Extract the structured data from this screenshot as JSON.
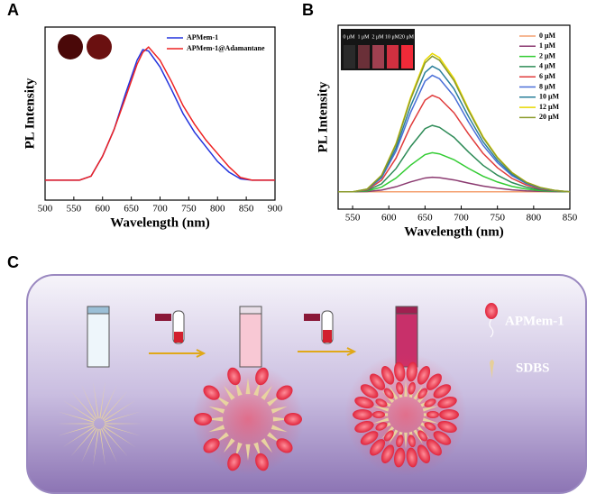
{
  "panel_labels": [
    "A",
    "B",
    "C"
  ],
  "chart_data": [
    {
      "type": "line",
      "xlabel": "Wavelength (nm)",
      "ylabel": "PL Intensity",
      "x": [
        500,
        520,
        540,
        560,
        580,
        600,
        620,
        640,
        660,
        670,
        680,
        700,
        720,
        740,
        760,
        780,
        800,
        820,
        840,
        860,
        880,
        900
      ],
      "xlim": [
        500,
        900
      ],
      "xticks": [
        500,
        550,
        600,
        650,
        700,
        750,
        800,
        850,
        900
      ],
      "ylim": [
        -0.15,
        1.15
      ],
      "legend": "upper right",
      "series": [
        {
          "name": "APMem-1",
          "color": "#2233dd",
          "values": [
            0,
            0,
            0,
            0,
            0.03,
            0.18,
            0.38,
            0.65,
            0.9,
            0.98,
            0.97,
            0.85,
            0.68,
            0.5,
            0.36,
            0.25,
            0.14,
            0.06,
            0.01,
            0,
            0,
            0
          ]
        },
        {
          "name": "APMem-1@Adamantane",
          "color": "#ee2222",
          "values": [
            0,
            0,
            0,
            0,
            0.03,
            0.18,
            0.38,
            0.62,
            0.87,
            0.96,
            1.0,
            0.9,
            0.74,
            0.56,
            0.42,
            0.3,
            0.2,
            0.1,
            0.02,
            0,
            0,
            0
          ]
        }
      ]
    },
    {
      "type": "line",
      "xlabel": "Wavelength (nm)",
      "ylabel": "PL Intensity",
      "x": [
        530,
        550,
        570,
        590,
        610,
        630,
        650,
        660,
        670,
        690,
        710,
        730,
        750,
        770,
        790,
        810,
        830,
        850
      ],
      "xlim": [
        530,
        850
      ],
      "xticks": [
        550,
        600,
        650,
        700,
        750,
        800,
        850
      ],
      "ylim": [
        -19,
        183
      ],
      "legend": "upper right",
      "inset_labels": [
        "0 μM",
        "1 μM",
        "2 μM",
        "10 μM",
        "20 μM"
      ],
      "series": [
        {
          "name": "0 μM",
          "color": "#f4a070",
          "values": [
            0,
            0,
            0,
            0,
            0,
            0,
            0,
            0,
            0,
            0,
            0,
            0,
            0,
            0,
            0,
            0,
            0,
            0
          ]
        },
        {
          "name": "1 μM",
          "color": "#8b3a70",
          "values": [
            0,
            0,
            0.3,
            1.9,
            5.6,
            10.9,
            15.2,
            16,
            15.5,
            13.1,
            9.6,
            6.4,
            4,
            2.2,
            1.1,
            0.5,
            0.2,
            0
          ]
        },
        {
          "name": "2 μM",
          "color": "#33cc33",
          "values": [
            0,
            0,
            0.9,
            5.2,
            15.1,
            29.2,
            40.9,
            43,
            41.7,
            35.3,
            25.8,
            17.2,
            10.8,
            6,
            3,
            1.3,
            0.4,
            0
          ]
        },
        {
          "name": "4 μM",
          "color": "#2e8b57",
          "values": [
            0,
            0,
            1.5,
            8.8,
            25.6,
            49.6,
            69.4,
            73,
            70.8,
            59.9,
            43.8,
            29.2,
            18.3,
            10.2,
            5.1,
            2.2,
            0.7,
            0
          ]
        },
        {
          "name": "6 μM",
          "color": "#e03c3c",
          "values": [
            0,
            0,
            2.1,
            12.7,
            37.1,
            72.1,
            100.7,
            106,
            102.8,
            86.9,
            63.6,
            42.4,
            26.5,
            14.8,
            7.4,
            3.2,
            1.1,
            0
          ]
        },
        {
          "name": "8 μM",
          "color": "#4a6fd8",
          "values": [
            0,
            0,
            2.6,
            15.4,
            44.8,
            87,
            121.6,
            128,
            124.2,
            105,
            76.8,
            51.2,
            32,
            17.9,
            9,
            3.8,
            1.3,
            0
          ]
        },
        {
          "name": "10 μM",
          "color": "#2a7f9a",
          "values": [
            0,
            0,
            2.8,
            16.6,
            48.3,
            93.8,
            131.1,
            138,
            133.9,
            113.2,
            82.8,
            55.2,
            34.5,
            19.3,
            9.7,
            4.1,
            1.4,
            0
          ]
        },
        {
          "name": "12 μM",
          "color": "#e8d800",
          "values": [
            0,
            0,
            3,
            18.2,
            53.2,
            103.4,
            144.4,
            152,
            147.4,
            124.6,
            91.2,
            60.8,
            38,
            21.3,
            10.6,
            4.6,
            1.5,
            0
          ]
        },
        {
          "name": "20 μM",
          "color": "#8a9a2a",
          "values": [
            0,
            0,
            3,
            17.9,
            52.2,
            101.3,
            141.6,
            149,
            144.5,
            122.2,
            89.4,
            59.6,
            37.3,
            20.9,
            10.4,
            4.5,
            1.5,
            0
          ]
        }
      ]
    }
  ],
  "diagram": {
    "labels": [
      "APMem-1",
      "SDBS"
    ]
  }
}
